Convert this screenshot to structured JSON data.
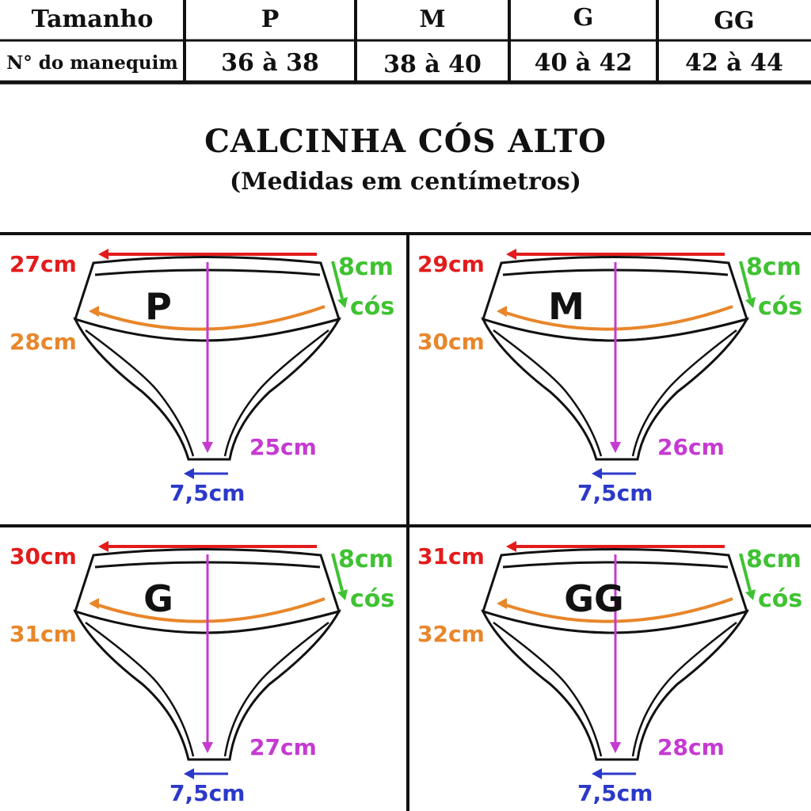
{
  "table": {
    "header_label": "Tamanho",
    "row_label": "N° do manequim",
    "sizes": [
      {
        "size": "P",
        "range": "36 à 38"
      },
      {
        "size": "M",
        "range": "38 à 40"
      },
      {
        "size": "G",
        "range": "40 à 42"
      },
      {
        "size": "GG",
        "range": "42 à 44"
      }
    ]
  },
  "title": "CALCINHA CÓS ALTO",
  "subtitle": "(Medidas em centímetros)",
  "colors": {
    "top": "#e31b1b",
    "hip": "#e8862a",
    "cos": "#3fc232",
    "length": "#c53ad1",
    "crotch": "#2b39c9"
  },
  "panels": [
    {
      "size": "P",
      "top": "27cm",
      "hip": "28cm",
      "cos_width": "8cm",
      "cos_label": "cós",
      "length": "25cm",
      "crotch": "7,5cm"
    },
    {
      "size": "M",
      "top": "29cm",
      "hip": "30cm",
      "cos_width": "8cm",
      "cos_label": "cós",
      "length": "26cm",
      "crotch": "7,5cm"
    },
    {
      "size": "G",
      "top": "30cm",
      "hip": "31cm",
      "cos_width": "8cm",
      "cos_label": "cós",
      "length": "27cm",
      "crotch": "7,5cm"
    },
    {
      "size": "GG",
      "top": "31cm",
      "hip": "32cm",
      "cos_width": "8cm",
      "cos_label": "cós",
      "length": "28cm",
      "crotch": "7,5cm"
    }
  ]
}
